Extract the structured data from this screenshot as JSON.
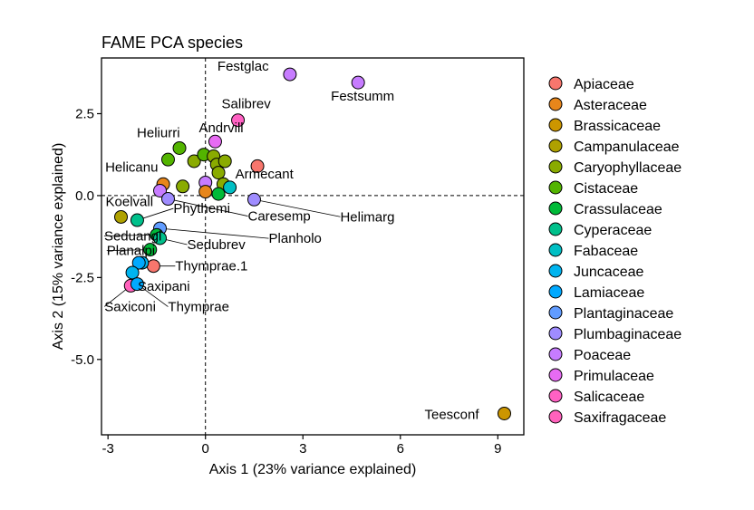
{
  "chart_data": {
    "type": "scatter",
    "title": "FAME PCA species",
    "xlabel": "Axis 1 (23% variance explained)",
    "ylabel": "Axis 2 (15% variance explained)",
    "xlim": [
      -3.2,
      9.8
    ],
    "ylim": [
      -7.3,
      4.2
    ],
    "xticks": [
      -3,
      0,
      3,
      6,
      9
    ],
    "xtick_labels": [
      "-3",
      "0",
      "3",
      "6",
      "9"
    ],
    "yticks": [
      2.5,
      0.0,
      -2.5,
      -5.0
    ],
    "ytick_labels": [
      "2.5",
      "0.0",
      "-2.5",
      "-5.0"
    ],
    "reference_lines": {
      "x": 0,
      "y": 0,
      "style": "dashed"
    },
    "grid": false,
    "legend_position": "right",
    "families": [
      {
        "name": "Apiaceae",
        "color": "#F8766D"
      },
      {
        "name": "Asteraceae",
        "color": "#E7861B"
      },
      {
        "name": "Brassicaceae",
        "color": "#CC9600"
      },
      {
        "name": "Campanulaceae",
        "color": "#AFA100"
      },
      {
        "name": "Caryophyllaceae",
        "color": "#8AAB00"
      },
      {
        "name": "Cistaceae",
        "color": "#53B400"
      },
      {
        "name": "Crassulaceae",
        "color": "#00BA38"
      },
      {
        "name": "Cyperaceae",
        "color": "#00C08B"
      },
      {
        "name": "Fabaceae",
        "color": "#00BFC4"
      },
      {
        "name": "Juncaceae",
        "color": "#00B4EF"
      },
      {
        "name": "Lamiaceae",
        "color": "#00A9FF"
      },
      {
        "name": "Plantaginaceae",
        "color": "#619CFF"
      },
      {
        "name": "Plumbaginaceae",
        "color": "#9F8CFF"
      },
      {
        "name": "Poaceae",
        "color": "#C77CFF"
      },
      {
        "name": "Primulaceae",
        "color": "#E76BF3"
      },
      {
        "name": "Salicaceae",
        "color": "#FF61C3"
      },
      {
        "name": "Saxifragaceae",
        "color": "#FF62BC"
      }
    ],
    "points": [
      {
        "x": 2.6,
        "y": 3.7,
        "family": "Poaceae",
        "label": "Festglac"
      },
      {
        "x": 4.7,
        "y": 3.45,
        "family": "Poaceae",
        "label": "Festsumm"
      },
      {
        "x": 1.0,
        "y": 2.3,
        "family": "Salicaceae",
        "label": "Salibrev"
      },
      {
        "x": 0.3,
        "y": 1.65,
        "family": "Primulaceae",
        "label": "Andrvill"
      },
      {
        "x": -0.8,
        "y": 1.45,
        "family": "Cistaceae",
        "label": "Heliurri"
      },
      {
        "x": -1.15,
        "y": 1.1,
        "family": "Cistaceae",
        "label": ""
      },
      {
        "x": -0.35,
        "y": 1.05,
        "family": "Caryophyllaceae",
        "label": ""
      },
      {
        "x": -0.05,
        "y": 1.25,
        "family": "Cistaceae",
        "label": ""
      },
      {
        "x": 0.25,
        "y": 1.2,
        "family": "Caryophyllaceae",
        "label": ""
      },
      {
        "x": 0.35,
        "y": 0.95,
        "family": "Caryophyllaceae",
        "label": ""
      },
      {
        "x": 0.6,
        "y": 1.05,
        "family": "Caryophyllaceae",
        "label": ""
      },
      {
        "x": 0.4,
        "y": 0.7,
        "family": "Caryophyllaceae",
        "label": ""
      },
      {
        "x": 1.6,
        "y": 0.9,
        "family": "Apiaceae",
        "label": ""
      },
      {
        "x": -1.3,
        "y": 0.35,
        "family": "Asteraceae",
        "label": "Helicanu"
      },
      {
        "x": -0.7,
        "y": 0.28,
        "family": "Caryophyllaceae",
        "label": ""
      },
      {
        "x": 0.0,
        "y": 0.4,
        "family": "Poaceae",
        "label": ""
      },
      {
        "x": 0.0,
        "y": 0.12,
        "family": "Asteraceae",
        "label": ""
      },
      {
        "x": 0.55,
        "y": 0.35,
        "family": "Caryophyllaceae",
        "label": ""
      },
      {
        "x": 0.75,
        "y": 0.25,
        "family": "Fabaceae",
        "label": "Armecant"
      },
      {
        "x": 0.4,
        "y": 0.05,
        "family": "Crassulaceae",
        "label": ""
      },
      {
        "x": 1.5,
        "y": -0.12,
        "family": "Plumbaginaceae",
        "label": "Helimarg"
      },
      {
        "x": -1.4,
        "y": 0.15,
        "family": "Poaceae",
        "label": ""
      },
      {
        "x": -1.15,
        "y": -0.1,
        "family": "Plumbaginaceae",
        "label": "Caresemp"
      },
      {
        "x": -2.6,
        "y": -0.65,
        "family": "Campanulaceae",
        "label": "Koelvall"
      },
      {
        "x": -2.1,
        "y": -0.75,
        "family": "Cyperaceae",
        "label": "Phythemi"
      },
      {
        "x": -1.4,
        "y": -1.0,
        "family": "Plantaginaceae",
        "label": "Planholo"
      },
      {
        "x": -1.5,
        "y": -1.2,
        "family": "Crassulaceae",
        "label": "Seduangl"
      },
      {
        "x": -1.4,
        "y": -1.3,
        "family": "Cyperaceae",
        "label": "Sedubrev"
      },
      {
        "x": -1.7,
        "y": -1.65,
        "family": "Crassulaceae",
        "label": "Planalpi"
      },
      {
        "x": -1.6,
        "y": -2.15,
        "family": "Apiaceae",
        "label": "Thymprae.1"
      },
      {
        "x": -1.95,
        "y": -2.05,
        "family": "Juncaceae",
        "label": ""
      },
      {
        "x": -2.05,
        "y": -2.05,
        "family": "Lamiaceae",
        "label": ""
      },
      {
        "x": -2.25,
        "y": -2.35,
        "family": "Juncaceae",
        "label": "Saxipani"
      },
      {
        "x": -2.3,
        "y": -2.75,
        "family": "Saxifragaceae",
        "label": "Saxiconi"
      },
      {
        "x": -2.1,
        "y": -2.7,
        "family": "Lamiaceae",
        "label": "Thymprae"
      },
      {
        "x": 9.2,
        "y": -6.65,
        "family": "Brassicaceae",
        "label": "Teesconf"
      }
    ]
  }
}
